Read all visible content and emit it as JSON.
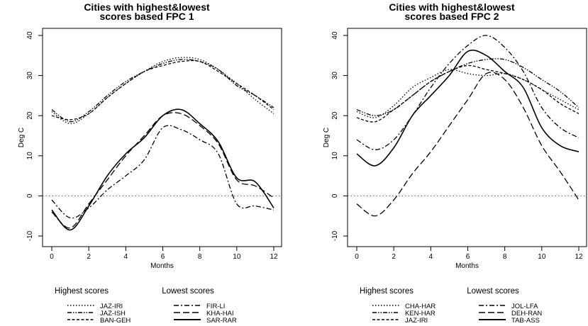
{
  "chart_data": [
    {
      "type": "line",
      "title": "Cities with highest&lowest scores based FPC 1",
      "title_lines": [
        "Cities with highest&lowest",
        "scores based FPC 1"
      ],
      "xlabel": "Months",
      "ylabel": "Deg C",
      "xlim": [
        0,
        12
      ],
      "ylim": [
        -10,
        40
      ],
      "xticks": [
        0,
        2,
        4,
        6,
        8,
        10,
        12
      ],
      "yticks": [
        -10,
        0,
        10,
        20,
        30,
        40
      ],
      "reference_line": 0,
      "legend": {
        "placement": "bottom",
        "groups": [
          {
            "title": "Highest scores",
            "entries": [
              "JAZ-IRI",
              "JAZ-ISH",
              "BAN-GEH"
            ]
          },
          {
            "title": "Lowest scores",
            "entries": [
              "FIR-LI",
              "KHA-HAI",
              "SAR-RAR"
            ]
          }
        ]
      },
      "series": [
        {
          "name": "JAZ-IRI",
          "group": "highest",
          "style": "dotted",
          "x": [
            0,
            1,
            2,
            3,
            4,
            5,
            6,
            7,
            8,
            9,
            10,
            11,
            12
          ],
          "values": [
            21,
            18,
            20.5,
            24.5,
            28,
            31,
            33.5,
            34.5,
            34,
            31.5,
            28,
            24,
            20.5
          ]
        },
        {
          "name": "JAZ-ISH",
          "group": "highest",
          "style": "dashdotdot",
          "x": [
            0,
            1,
            2,
            3,
            4,
            5,
            6,
            7,
            8,
            9,
            10,
            11,
            12
          ],
          "values": [
            21.5,
            18.5,
            21,
            25,
            28.5,
            31,
            33,
            34,
            33.5,
            31.5,
            27.5,
            25,
            22
          ]
        },
        {
          "name": "BAN-GEH",
          "group": "highest",
          "style": "shortdash",
          "x": [
            0,
            1,
            2,
            3,
            4,
            5,
            6,
            7,
            8,
            9,
            10,
            11,
            12
          ],
          "values": [
            20,
            19,
            20.5,
            24.5,
            28,
            31,
            32.5,
            33.5,
            33.5,
            31,
            28,
            25,
            21.5
          ]
        },
        {
          "name": "FIR-LI",
          "group": "lowest",
          "style": "dashdot",
          "x": [
            0,
            1,
            2,
            3,
            4,
            5,
            6,
            7,
            8,
            9,
            10,
            11,
            12
          ],
          "values": [
            -1,
            -5.5,
            -3,
            1.5,
            5,
            9,
            17,
            16.5,
            14,
            10.5,
            -2,
            -2.5,
            -3.5
          ]
        },
        {
          "name": "KHA-HAI",
          "group": "lowest",
          "style": "longdash",
          "x": [
            0,
            1,
            2,
            3,
            4,
            5,
            6,
            7,
            8,
            9,
            10,
            11,
            12
          ],
          "values": [
            -4,
            -8,
            -2,
            4,
            10,
            15,
            20,
            20.5,
            17.5,
            13,
            4,
            2.5,
            -0.5
          ]
        },
        {
          "name": "SAR-RAR",
          "group": "lowest",
          "style": "solid",
          "x": [
            0,
            1,
            2,
            3,
            4,
            5,
            6,
            7,
            8,
            9,
            10,
            11,
            12
          ],
          "values": [
            -3.5,
            -8.5,
            -2.5,
            5,
            10.5,
            14.5,
            20,
            21.5,
            18,
            13.5,
            4.5,
            3.5,
            -3
          ]
        }
      ]
    },
    {
      "type": "line",
      "title": "Cities with highest&lowest scores based FPC 2",
      "title_lines": [
        "Cities with highest&lowest",
        "scores based FPC 2"
      ],
      "xlabel": "Months",
      "ylabel": "Deg C",
      "xlim": [
        0,
        12
      ],
      "ylim": [
        -10,
        40
      ],
      "xticks": [
        0,
        2,
        4,
        6,
        8,
        10,
        12
      ],
      "yticks": [
        -10,
        0,
        10,
        20,
        30,
        40
      ],
      "reference_line": 0,
      "legend": {
        "placement": "bottom",
        "groups": [
          {
            "title": "Highest scores",
            "entries": [
              "CHA-HAR",
              "KEN-HAR",
              "JAZ-IRI"
            ]
          },
          {
            "title": "Lowest scores",
            "entries": [
              "JOL-LFA",
              "DEH-RAN",
              "TAB-ASS"
            ]
          }
        ]
      },
      "series": [
        {
          "name": "CHA-HAR",
          "group": "highest",
          "style": "dotted",
          "x": [
            0,
            1,
            2,
            3,
            4,
            5,
            6,
            7,
            8,
            9,
            10,
            11,
            12
          ],
          "values": [
            21,
            19.5,
            22.5,
            27,
            29.5,
            31.5,
            30.5,
            30,
            30.5,
            29,
            26.5,
            24,
            21.5
          ]
        },
        {
          "name": "KEN-HAR",
          "group": "highest",
          "style": "dashdotdot",
          "x": [
            0,
            1,
            2,
            3,
            4,
            5,
            6,
            7,
            8,
            9,
            10,
            11,
            12
          ],
          "values": [
            21.5,
            20,
            21.5,
            25,
            28.5,
            31,
            33,
            34,
            34,
            32,
            29,
            26,
            22
          ]
        },
        {
          "name": "JAZ-IRI",
          "group": "highest",
          "style": "shortdash",
          "x": [
            0,
            1,
            2,
            3,
            4,
            5,
            6,
            7,
            8,
            9,
            10,
            11,
            12
          ],
          "values": [
            19.5,
            18.5,
            21.5,
            25,
            28.5,
            31,
            32.5,
            31.5,
            30.5,
            29,
            26.5,
            23,
            20.5
          ]
        },
        {
          "name": "JOL-LFA",
          "group": "lowest",
          "style": "dashdot",
          "x": [
            0,
            1,
            2,
            3,
            4,
            5,
            6,
            7,
            8,
            9,
            10,
            11,
            12
          ],
          "values": [
            14,
            11.5,
            14,
            20,
            27,
            33,
            37.5,
            40,
            37,
            31,
            22,
            17,
            14.5
          ]
        },
        {
          "name": "DEH-RAN",
          "group": "lowest",
          "style": "longdash",
          "x": [
            0,
            1,
            2,
            3,
            4,
            5,
            6,
            7,
            8,
            9,
            10,
            11,
            12
          ],
          "values": [
            -2,
            -5,
            -1,
            5.5,
            11,
            17.5,
            24,
            30.5,
            29,
            22,
            12.5,
            6,
            -1
          ]
        },
        {
          "name": "TAB-ASS",
          "group": "lowest",
          "style": "solid",
          "x": [
            0,
            1,
            2,
            3,
            4,
            5,
            6,
            7,
            8,
            9,
            10,
            11,
            12
          ],
          "values": [
            10.5,
            7.5,
            12,
            20,
            25,
            30,
            36,
            35,
            31,
            27,
            17,
            12.5,
            11
          ]
        }
      ]
    }
  ]
}
